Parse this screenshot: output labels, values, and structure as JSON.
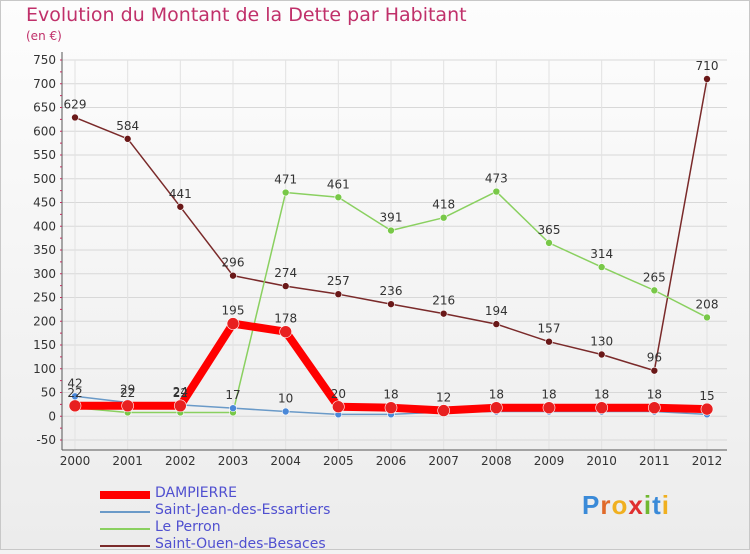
{
  "chart_data": {
    "type": "line",
    "title": "Evolution du Montant de la Dette par Habitant",
    "subtitle": "(en €)",
    "x": [
      "2000",
      "2001",
      "2002",
      "2003",
      "2004",
      "2005",
      "2006",
      "2007",
      "2008",
      "2009",
      "2010",
      "2011",
      "2012"
    ],
    "ylim": [
      -50,
      750
    ],
    "yticks": [
      -50,
      0,
      50,
      100,
      150,
      200,
      250,
      300,
      350,
      400,
      450,
      500,
      550,
      600,
      650,
      700,
      750
    ],
    "grid": true,
    "legend_position": "bottom-left",
    "series": [
      {
        "name": "DAMPIERRE",
        "color": "#ff0000",
        "point_color": "#e82020",
        "width": 8,
        "values": [
          22,
          22,
          22,
          195,
          178,
          20,
          18,
          12,
          18,
          18,
          18,
          18,
          15
        ],
        "labels": [
          "22",
          "22",
          "22",
          "195",
          "178",
          "20",
          "18",
          "12",
          "18",
          "18",
          "18",
          "18",
          "15"
        ]
      },
      {
        "name": "Saint-Jean-des-Essartiers",
        "color": "#6a9ac8",
        "point_color": "#4a88d8",
        "width": 1.5,
        "values": [
          42,
          29,
          24,
          17,
          10,
          4,
          4,
          9,
          10,
          10,
          10,
          10,
          4
        ],
        "labels": [
          "42",
          "29",
          "24",
          "17",
          "10",
          "",
          "",
          "",
          "",
          "",
          "",
          "",
          ""
        ]
      },
      {
        "name": "Le Perron",
        "color": "#8ad060",
        "point_color": "#78c848",
        "width": 1.5,
        "values": [
          18,
          8,
          8,
          8,
          471,
          461,
          391,
          418,
          473,
          365,
          314,
          265,
          208
        ],
        "labels": [
          "",
          "",
          "",
          "",
          "471",
          "461",
          "391",
          "418",
          "473",
          "365",
          "314",
          "265",
          "208"
        ]
      },
      {
        "name": "Saint-Ouen-des-Besaces",
        "color": "#7a2a2a",
        "point_color": "#6a1818",
        "width": 1.5,
        "values": [
          629,
          584,
          441,
          296,
          274,
          257,
          236,
          216,
          194,
          157,
          130,
          96,
          710
        ],
        "labels": [
          "629",
          "584",
          "441",
          "296",
          "274",
          "257",
          "236",
          "216",
          "194",
          "157",
          "130",
          "96",
          "710"
        ]
      }
    ]
  },
  "logo": {
    "text": "Proxiti",
    "letters": [
      "P",
      "r",
      "o",
      "x",
      "i",
      "t",
      "i"
    ],
    "colors": [
      "#3a8ad8",
      "#e06a2a",
      "#f0b020",
      "#e03030",
      "#70b830",
      "#3a8ad8",
      "#f0b020"
    ]
  }
}
